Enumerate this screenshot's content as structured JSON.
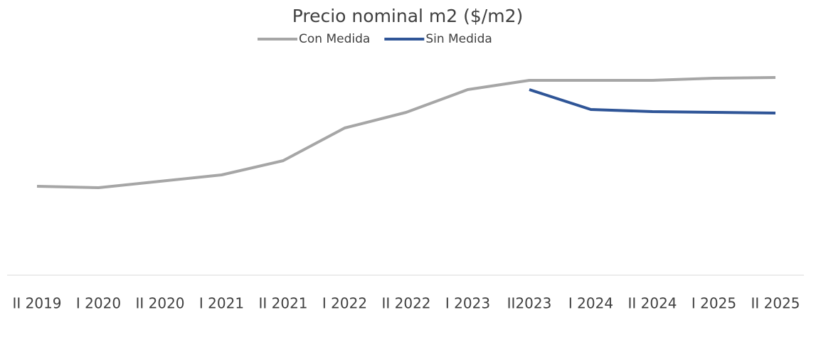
{
  "chart_data": {
    "type": "line",
    "title": "Precio nominal m2 ($/m2)",
    "categories": [
      "II 2019",
      "I 2020",
      "II 2020",
      "I 2021",
      "II 2021",
      "I 2022",
      "II 2022",
      "I 2023",
      "II2023",
      "I 2024",
      "II 2024",
      "I 2025",
      "II 2025"
    ],
    "series": [
      {
        "name": "Con Medida",
        "color": "#a6a6a6",
        "values": [
          125,
          123,
          132,
          141,
          161,
          207,
          229,
          261,
          274,
          274,
          274,
          277,
          278
        ]
      },
      {
        "name": "Sin Medida",
        "color": "#2f5597",
        "values": [
          null,
          null,
          null,
          null,
          null,
          null,
          null,
          null,
          261,
          233,
          230,
          229,
          228
        ]
      }
    ],
    "ylim": [
      0,
      320
    ],
    "legend": "top"
  }
}
